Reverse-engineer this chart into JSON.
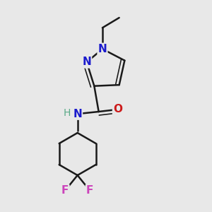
{
  "background_color": "#e8e8e8",
  "bond_color": "#1a1a1a",
  "bond_width": 1.8,
  "figsize": [
    3.0,
    3.0
  ],
  "dpi": 100,
  "xlim": [
    0.15,
    0.85
  ],
  "ylim": [
    0.02,
    0.97
  ]
}
